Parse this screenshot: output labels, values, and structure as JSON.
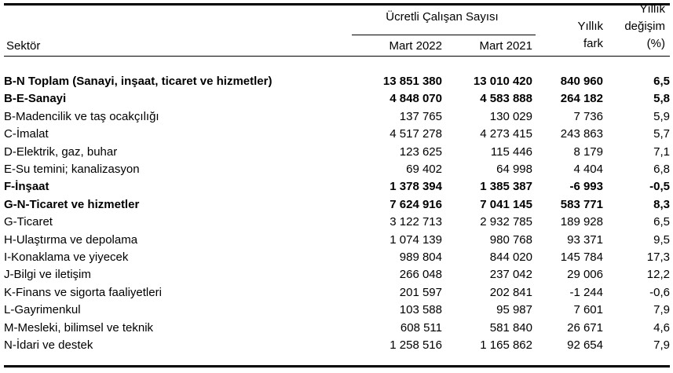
{
  "table": {
    "header": {
      "sector": "Sektör",
      "group_title": "Ücretli Çalışan Sayısı",
      "col_m2022": "Mart 2022",
      "col_m2021": "Mart 2021",
      "col_fark_line1": "Yıllık",
      "col_fark_line2": "fark",
      "col_pct_line1": "Yıllık",
      "col_pct_line2": "değişim",
      "col_pct_line3": "(%)"
    },
    "rows": [
      {
        "sector": "B-N Toplam (Sanayi, inşaat, ticaret ve hizmetler)",
        "bold": true,
        "m2022": "13 851 380",
        "m2021": "13 010 420",
        "fark": "840 960",
        "pct": "6,5"
      },
      {
        "sector": "B-E-Sanayi",
        "bold": true,
        "m2022": "4 848 070",
        "m2021": "4 583 888",
        "fark": "264 182",
        "pct": "5,8"
      },
      {
        "sector": "B-Madencilik ve taş ocakçılığı",
        "bold": false,
        "m2022": "137 765",
        "m2021": "130 029",
        "fark": "7 736",
        "pct": "5,9"
      },
      {
        "sector": "C-İmalat",
        "bold": false,
        "m2022": "4 517 278",
        "m2021": "4 273 415",
        "fark": "243 863",
        "pct": "5,7"
      },
      {
        "sector": "D-Elektrik, gaz, buhar",
        "bold": false,
        "m2022": "123 625",
        "m2021": "115 446",
        "fark": "8 179",
        "pct": "7,1"
      },
      {
        "sector": "E-Su temini; kanalizasyon",
        "bold": false,
        "m2022": "69 402",
        "m2021": "64 998",
        "fark": "4 404",
        "pct": "6,8"
      },
      {
        "sector": "F-İnşaat",
        "bold": true,
        "m2022": "1 378 394",
        "m2021": "1 385 387",
        "fark": "-6 993",
        "pct": "-0,5"
      },
      {
        "sector": "G-N-Ticaret ve hizmetler",
        "bold": true,
        "m2022": "7 624 916",
        "m2021": "7 041 145",
        "fark": "583 771",
        "pct": "8,3"
      },
      {
        "sector": "G-Ticaret",
        "bold": false,
        "m2022": "3 122 713",
        "m2021": "2 932 785",
        "fark": "189 928",
        "pct": "6,5"
      },
      {
        "sector": "H-Ulaştırma ve depolama",
        "bold": false,
        "m2022": "1 074 139",
        "m2021": "980 768",
        "fark": "93 371",
        "pct": "9,5"
      },
      {
        "sector": "I-Konaklama ve yiyecek",
        "bold": false,
        "m2022": "989 804",
        "m2021": "844 020",
        "fark": "145 784",
        "pct": "17,3"
      },
      {
        "sector": "J-Bilgi ve iletişim",
        "bold": false,
        "m2022": "266 048",
        "m2021": "237 042",
        "fark": "29 006",
        "pct": "12,2"
      },
      {
        "sector": "K-Finans ve sigorta faaliyetleri",
        "bold": false,
        "m2022": "201 597",
        "m2021": "202 841",
        "fark": "-1 244",
        "pct": "-0,6"
      },
      {
        "sector": "L-Gayrimenkul",
        "bold": false,
        "m2022": "103 588",
        "m2021": "95 987",
        "fark": "7 601",
        "pct": "7,9"
      },
      {
        "sector": "M-Mesleki, bilimsel ve teknik",
        "bold": false,
        "m2022": "608 511",
        "m2021": "581 840",
        "fark": "26 671",
        "pct": "4,6"
      },
      {
        "sector": "N-İdari ve destek",
        "bold": false,
        "m2022": "1 258 516",
        "m2021": "1 165 862",
        "fark": "92 654",
        "pct": "7,9"
      }
    ]
  },
  "chart_data": {
    "type": "table",
    "title": "Ücretli Çalışan Sayısı",
    "columns": [
      "Sektör",
      "Mart 2022",
      "Mart 2021",
      "Yıllık fark",
      "Yıllık değişim (%)"
    ],
    "rows": [
      [
        "B-N Toplam (Sanayi, inşaat, ticaret ve hizmetler)",
        13851380,
        13010420,
        840960,
        6.5
      ],
      [
        "B-E-Sanayi",
        4848070,
        4583888,
        264182,
        5.8
      ],
      [
        "B-Madencilik ve taş ocakçılığı",
        137765,
        130029,
        7736,
        5.9
      ],
      [
        "C-İmalat",
        4517278,
        4273415,
        243863,
        5.7
      ],
      [
        "D-Elektrik, gaz, buhar",
        123625,
        115446,
        8179,
        7.1
      ],
      [
        "E-Su temini; kanalizasyon",
        69402,
        64998,
        4404,
        6.8
      ],
      [
        "F-İnşaat",
        1378394,
        1385387,
        -6993,
        -0.5
      ],
      [
        "G-N-Ticaret ve hizmetler",
        7624916,
        7041145,
        583771,
        8.3
      ],
      [
        "G-Ticaret",
        3122713,
        2932785,
        189928,
        6.5
      ],
      [
        "H-Ulaştırma ve depolama",
        1074139,
        980768,
        93371,
        9.5
      ],
      [
        "I-Konaklama ve yiyecek",
        989804,
        844020,
        145784,
        17.3
      ],
      [
        "J-Bilgi ve iletişim",
        266048,
        237042,
        29006,
        12.2
      ],
      [
        "K-Finans ve sigorta faaliyetleri",
        201597,
        202841,
        -1244,
        -0.6
      ],
      [
        "L-Gayrimenkul",
        103588,
        95987,
        7601,
        7.9
      ],
      [
        "M-Mesleki, bilimsel ve teknik",
        608511,
        581840,
        26671,
        4.6
      ],
      [
        "N-İdari ve destek",
        1258516,
        1165862,
        92654,
        7.9
      ]
    ]
  },
  "colors": {
    "text": "#000000",
    "background": "#ffffff",
    "rule": "#000000"
  }
}
